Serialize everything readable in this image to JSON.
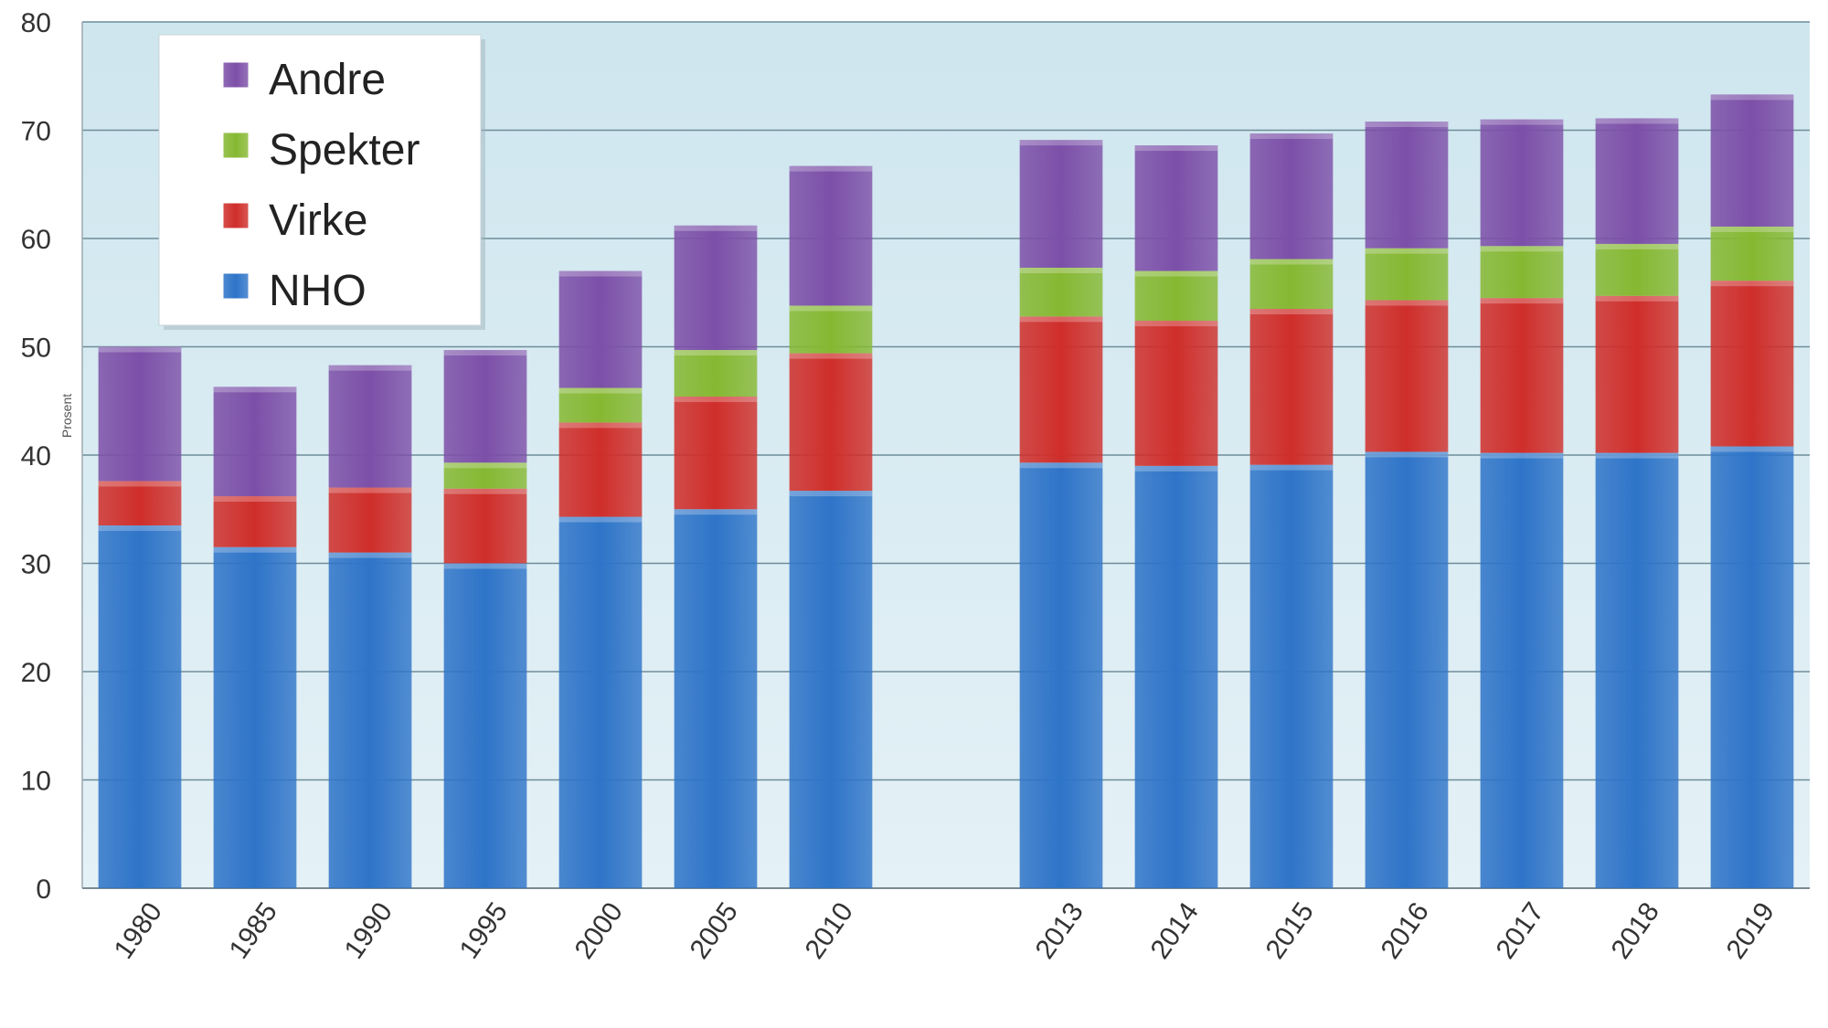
{
  "chart_data": {
    "type": "bar",
    "stacked": true,
    "title": "",
    "xlabel": "",
    "ylabel": "Prosent",
    "ylim": [
      0,
      80
    ],
    "yticks": [
      0,
      10,
      20,
      30,
      40,
      50,
      60,
      70,
      80
    ],
    "grid": true,
    "legend_position": "top-left",
    "categories": [
      "1980",
      "1985",
      "1990",
      "1995",
      "2000",
      "2005",
      "2010",
      "2013",
      "2014",
      "2015",
      "2016",
      "2017",
      "2018",
      "2019"
    ],
    "gap_after_category": "2010",
    "series": [
      {
        "name": "NHO",
        "color": "#2e74c8",
        "values": [
          33.5,
          31.5,
          31.0,
          30.0,
          34.3,
          35.0,
          36.7,
          39.3,
          39.0,
          39.1,
          40.3,
          40.2,
          40.2,
          40.8
        ]
      },
      {
        "name": "Virke",
        "color": "#cf2e2a",
        "values": [
          4.1,
          4.7,
          6.0,
          6.9,
          8.7,
          10.4,
          12.7,
          13.5,
          13.4,
          14.4,
          14.0,
          14.3,
          14.5,
          15.3
        ]
      },
      {
        "name": "Spekter",
        "color": "#86b832",
        "values": [
          0,
          0,
          0,
          2.4,
          3.2,
          4.3,
          4.4,
          4.5,
          4.6,
          4.6,
          4.8,
          4.8,
          4.8,
          5.0
        ]
      },
      {
        "name": "Andre",
        "color": "#7c4fa8",
        "values": [
          12.4,
          10.1,
          11.3,
          10.4,
          10.8,
          11.5,
          12.9,
          11.8,
          11.6,
          11.6,
          11.7,
          11.7,
          11.6,
          12.2
        ]
      }
    ],
    "legend_order": [
      "Andre",
      "Spekter",
      "Virke",
      "NHO"
    ]
  }
}
